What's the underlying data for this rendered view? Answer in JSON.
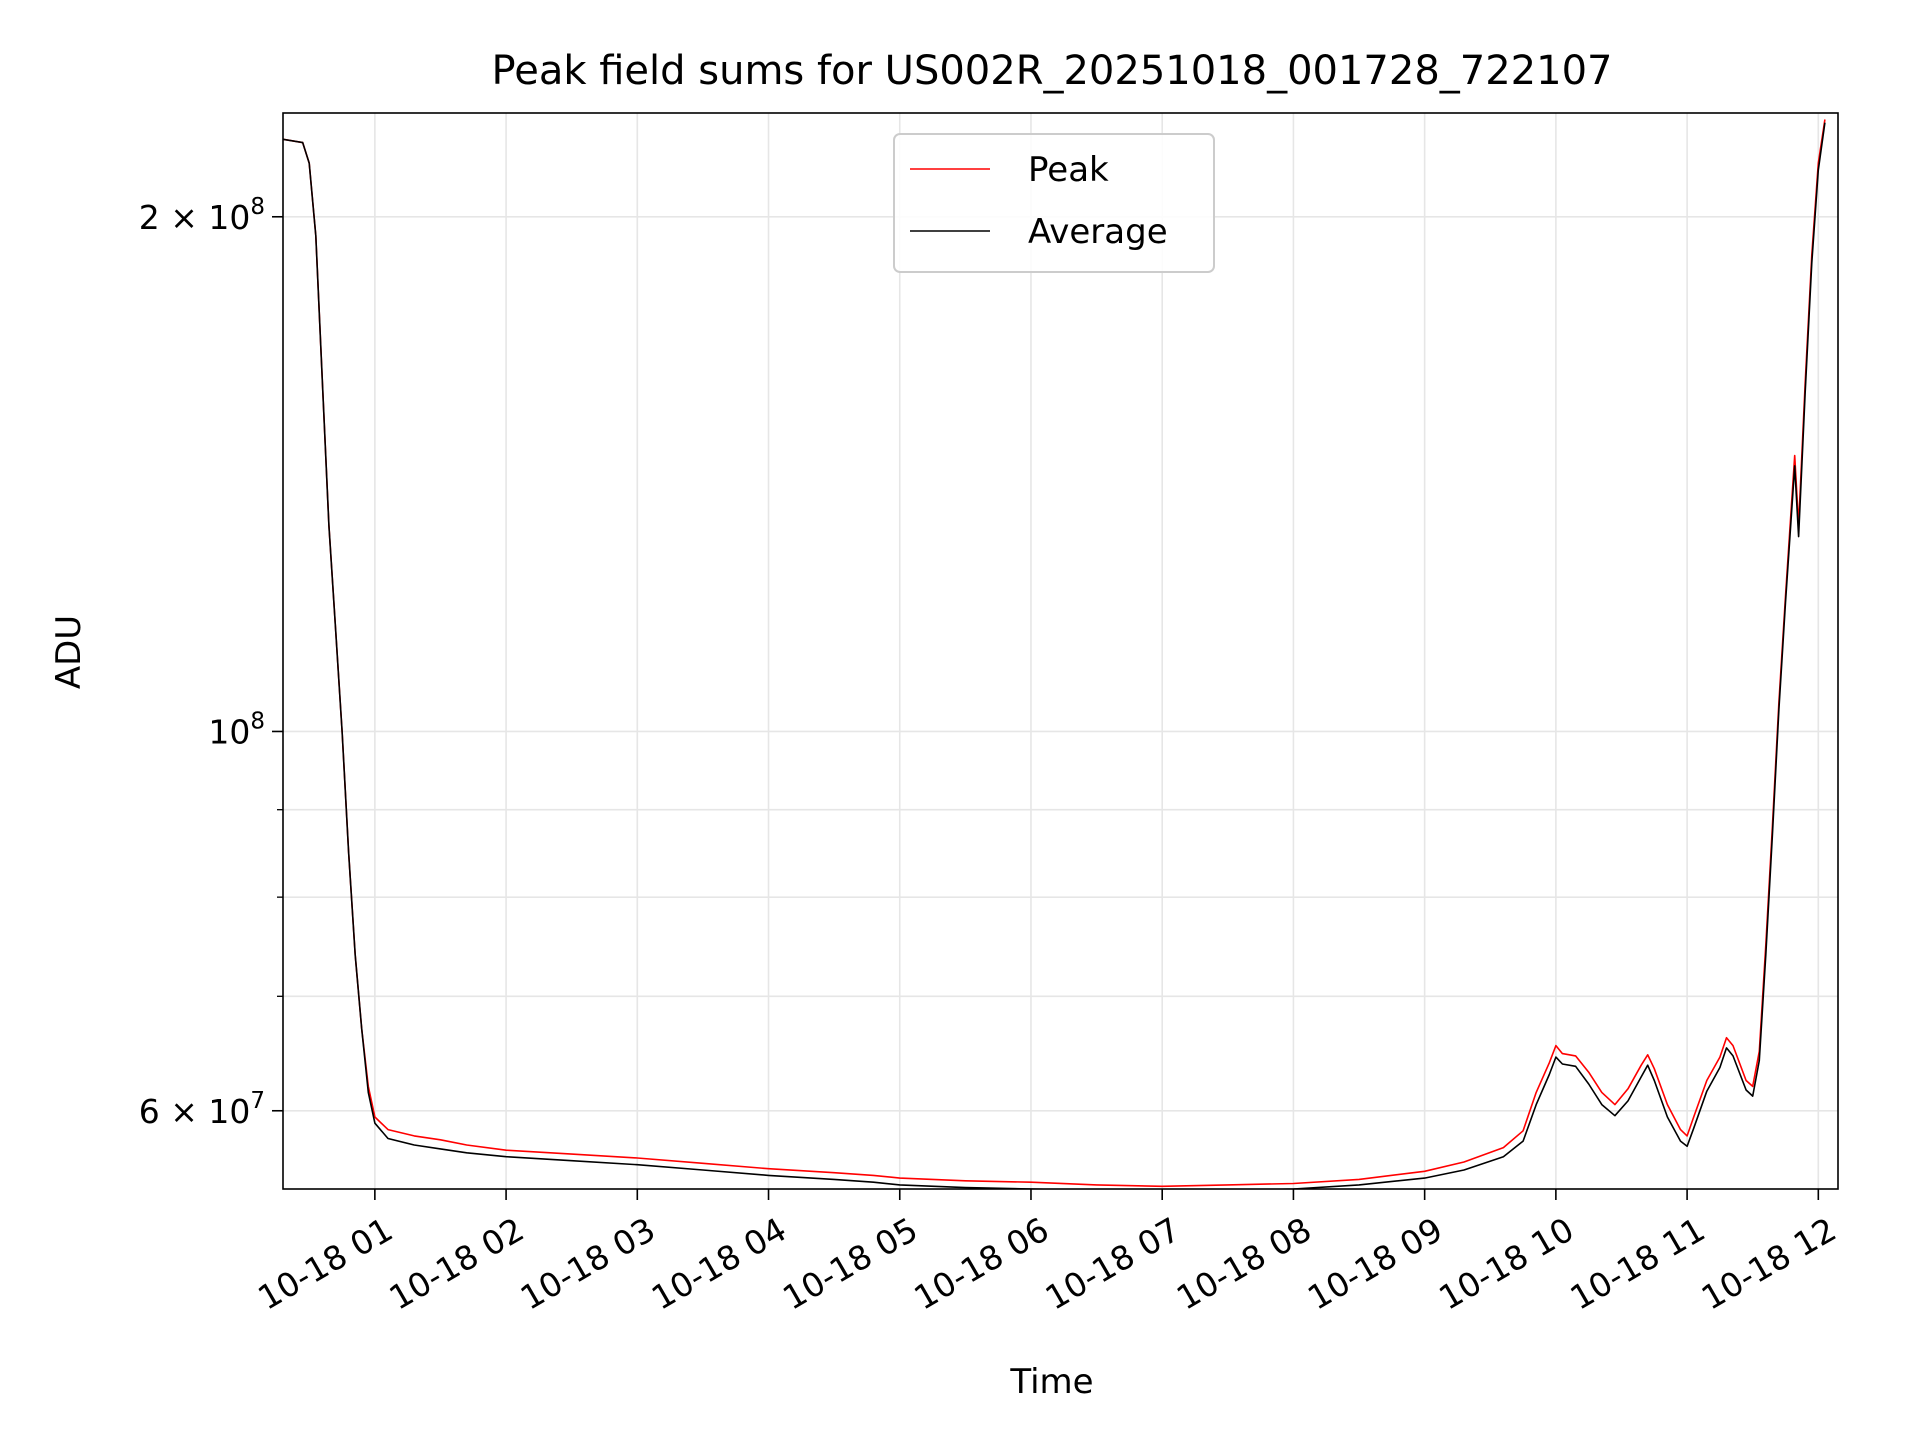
{
  "chart_data": {
    "type": "line",
    "title": "Peak field sums for US002R_20251018_001728_722107",
    "xlabel": "Time",
    "ylabel": "ADU",
    "yscale": "log",
    "xlim": [
      0.3,
      12.15
    ],
    "ylim": [
      54000000,
      230000000
    ],
    "grid": true,
    "legend_position": "top-center",
    "x_ticks": [
      {
        "value": 1,
        "label": "10-18 01"
      },
      {
        "value": 2,
        "label": "10-18 02"
      },
      {
        "value": 3,
        "label": "10-18 03"
      },
      {
        "value": 4,
        "label": "10-18 04"
      },
      {
        "value": 5,
        "label": "10-18 05"
      },
      {
        "value": 6,
        "label": "10-18 06"
      },
      {
        "value": 7,
        "label": "10-18 07"
      },
      {
        "value": 8,
        "label": "10-18 08"
      },
      {
        "value": 9,
        "label": "10-18 09"
      },
      {
        "value": 10,
        "label": "10-18 10"
      },
      {
        "value": 11,
        "label": "10-18 11"
      },
      {
        "value": 12,
        "label": "10-18 12"
      }
    ],
    "y_ticks": [
      {
        "value": 60000000,
        "mantissa": "6",
        "exponent": "7"
      },
      {
        "value": 100000000,
        "mantissa": "",
        "exponent": "8"
      },
      {
        "value": 200000000,
        "mantissa": "2",
        "exponent": "8"
      }
    ],
    "y_minor_ticks": [
      70000000,
      80000000,
      90000000
    ],
    "series": [
      {
        "name": "Peak",
        "color": "#ff0000",
        "points": [
          [
            0.3,
            222000000
          ],
          [
            0.45,
            221000000
          ],
          [
            0.5,
            215000000
          ],
          [
            0.55,
            195000000
          ],
          [
            0.6,
            160000000
          ],
          [
            0.65,
            132000000
          ],
          [
            0.7,
            115000000
          ],
          [
            0.75,
            100000000
          ],
          [
            0.8,
            85000000
          ],
          [
            0.85,
            74000000
          ],
          [
            0.9,
            67000000
          ],
          [
            0.95,
            62000000
          ],
          [
            1.0,
            59500000
          ],
          [
            1.1,
            58500000
          ],
          [
            1.3,
            58000000
          ],
          [
            1.5,
            57700000
          ],
          [
            1.7,
            57300000
          ],
          [
            2.0,
            56900000
          ],
          [
            2.5,
            56600000
          ],
          [
            3.0,
            56300000
          ],
          [
            3.5,
            55900000
          ],
          [
            4.0,
            55500000
          ],
          [
            4.5,
            55200000
          ],
          [
            4.8,
            55000000
          ],
          [
            5.0,
            54800000
          ],
          [
            5.5,
            54600000
          ],
          [
            6.0,
            54500000
          ],
          [
            6.5,
            54300000
          ],
          [
            7.0,
            54200000
          ],
          [
            7.5,
            54300000
          ],
          [
            8.0,
            54400000
          ],
          [
            8.5,
            54700000
          ],
          [
            9.0,
            55300000
          ],
          [
            9.3,
            56000000
          ],
          [
            9.6,
            57100000
          ],
          [
            9.75,
            58400000
          ],
          [
            9.85,
            61500000
          ],
          [
            9.95,
            64000000
          ],
          [
            10.0,
            65500000
          ],
          [
            10.05,
            64800000
          ],
          [
            10.15,
            64600000
          ],
          [
            10.25,
            63200000
          ],
          [
            10.35,
            61500000
          ],
          [
            10.45,
            60500000
          ],
          [
            10.55,
            61800000
          ],
          [
            10.65,
            63800000
          ],
          [
            10.7,
            64700000
          ],
          [
            10.75,
            63500000
          ],
          [
            10.85,
            60500000
          ],
          [
            10.95,
            58500000
          ],
          [
            11.0,
            58000000
          ],
          [
            11.05,
            59500000
          ],
          [
            11.15,
            62500000
          ],
          [
            11.25,
            64500000
          ],
          [
            11.3,
            66200000
          ],
          [
            11.35,
            65500000
          ],
          [
            11.45,
            62500000
          ],
          [
            11.5,
            62000000
          ],
          [
            11.55,
            65000000
          ],
          [
            11.6,
            75000000
          ],
          [
            11.65,
            88000000
          ],
          [
            11.7,
            104000000
          ],
          [
            11.75,
            120000000
          ],
          [
            11.82,
            145000000
          ],
          [
            11.85,
            132000000
          ],
          [
            11.9,
            160000000
          ],
          [
            11.95,
            190000000
          ],
          [
            12.0,
            215000000
          ],
          [
            12.05,
            228000000
          ]
        ]
      },
      {
        "name": "Average",
        "color": "#000000",
        "points": [
          [
            0.3,
            222000000
          ],
          [
            0.45,
            221000000
          ],
          [
            0.5,
            215000000
          ],
          [
            0.55,
            195000000
          ],
          [
            0.6,
            160000000
          ],
          [
            0.65,
            132000000
          ],
          [
            0.7,
            115000000
          ],
          [
            0.75,
            100000000
          ],
          [
            0.8,
            85000000
          ],
          [
            0.85,
            74000000
          ],
          [
            0.9,
            67000000
          ],
          [
            0.95,
            61500000
          ],
          [
            1.0,
            59000000
          ],
          [
            1.1,
            57800000
          ],
          [
            1.3,
            57300000
          ],
          [
            1.5,
            57000000
          ],
          [
            1.7,
            56700000
          ],
          [
            2.0,
            56400000
          ],
          [
            2.5,
            56100000
          ],
          [
            3.0,
            55800000
          ],
          [
            3.5,
            55400000
          ],
          [
            4.0,
            55000000
          ],
          [
            4.5,
            54700000
          ],
          [
            4.8,
            54500000
          ],
          [
            5.0,
            54300000
          ],
          [
            5.5,
            54100000
          ],
          [
            6.0,
            54000000
          ],
          [
            6.5,
            53900000
          ],
          [
            7.0,
            53800000
          ],
          [
            7.5,
            53900000
          ],
          [
            8.0,
            54000000
          ],
          [
            8.5,
            54300000
          ],
          [
            9.0,
            54800000
          ],
          [
            9.3,
            55400000
          ],
          [
            9.6,
            56400000
          ],
          [
            9.75,
            57600000
          ],
          [
            9.85,
            60500000
          ],
          [
            9.95,
            63000000
          ],
          [
            10.0,
            64500000
          ],
          [
            10.05,
            63900000
          ],
          [
            10.15,
            63700000
          ],
          [
            10.25,
            62200000
          ],
          [
            10.35,
            60500000
          ],
          [
            10.45,
            59600000
          ],
          [
            10.55,
            60800000
          ],
          [
            10.65,
            62800000
          ],
          [
            10.7,
            63800000
          ],
          [
            10.75,
            62500000
          ],
          [
            10.85,
            59500000
          ],
          [
            10.95,
            57600000
          ],
          [
            11.0,
            57200000
          ],
          [
            11.05,
            58600000
          ],
          [
            11.15,
            61600000
          ],
          [
            11.25,
            63600000
          ],
          [
            11.3,
            65300000
          ],
          [
            11.35,
            64600000
          ],
          [
            11.45,
            61700000
          ],
          [
            11.5,
            61200000
          ],
          [
            11.55,
            64200000
          ],
          [
            11.6,
            74000000
          ],
          [
            11.65,
            87000000
          ],
          [
            11.7,
            103000000
          ],
          [
            11.75,
            119000000
          ],
          [
            11.82,
            143000000
          ],
          [
            11.85,
            130000000
          ],
          [
            11.9,
            158000000
          ],
          [
            11.95,
            188000000
          ],
          [
            12.0,
            213000000
          ],
          [
            12.05,
            227000000
          ]
        ]
      }
    ]
  }
}
